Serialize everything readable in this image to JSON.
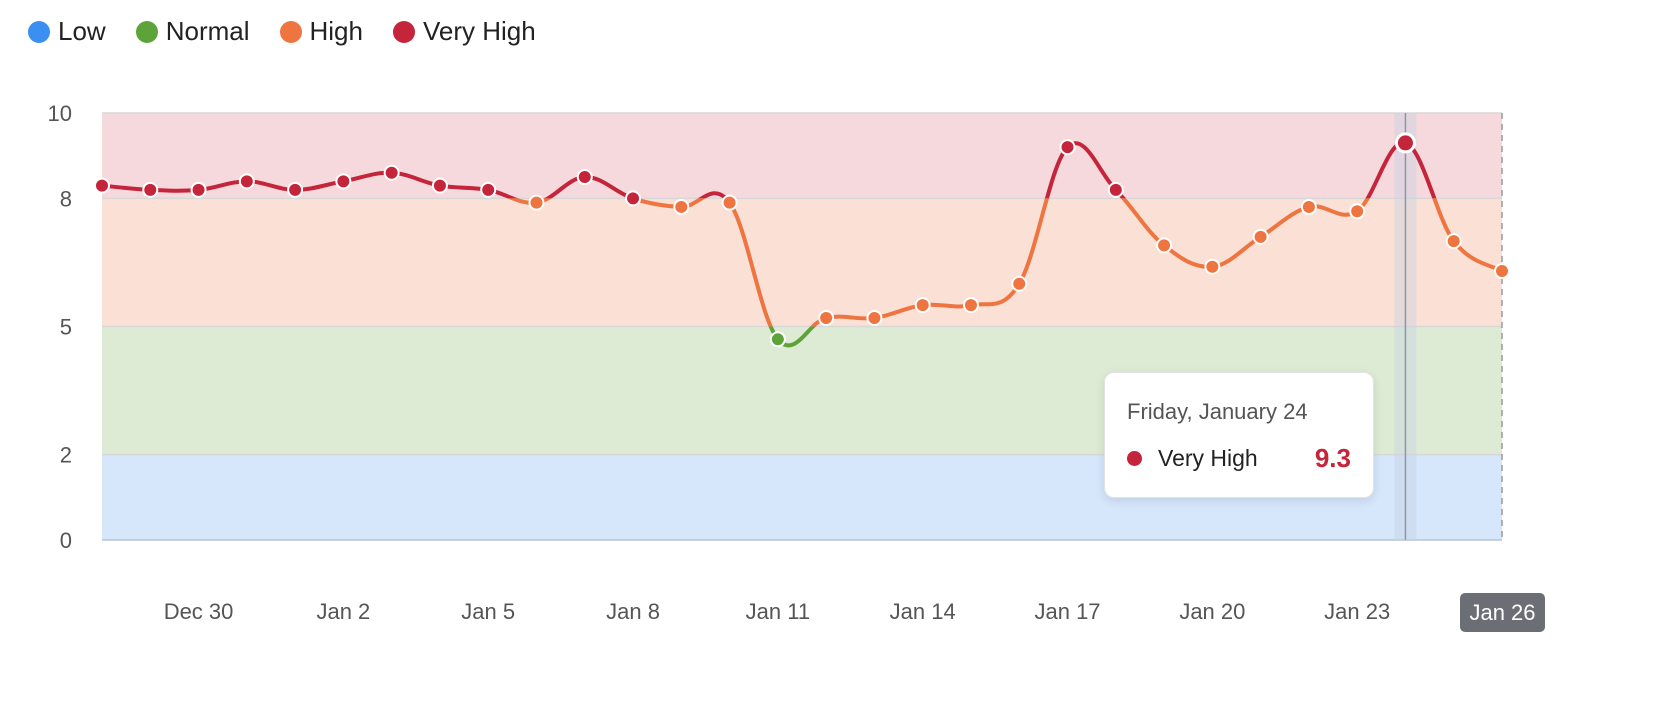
{
  "legend": [
    {
      "label": "Low",
      "color": "#3b8ff0"
    },
    {
      "label": "Normal",
      "color": "#5ea33a"
    },
    {
      "label": "High",
      "color": "#ee7440"
    },
    {
      "label": "Very High",
      "color": "#c4253a"
    }
  ],
  "tooltip": {
    "date": "Friday, January 24",
    "series": "Very High",
    "value": "9.3"
  },
  "x_badge": "Jan 26",
  "chart_data": {
    "type": "line",
    "x_start": "Dec 28",
    "x": [
      "Dec 28",
      "Dec 29",
      "Dec 30",
      "Dec 31",
      "Jan 1",
      "Jan 2",
      "Jan 3",
      "Jan 4",
      "Jan 5",
      "Jan 6",
      "Jan 7",
      "Jan 8",
      "Jan 9",
      "Jan 10",
      "Jan 11",
      "Jan 12",
      "Jan 13",
      "Jan 14",
      "Jan 15",
      "Jan 16",
      "Jan 17",
      "Jan 18",
      "Jan 19",
      "Jan 20",
      "Jan 21",
      "Jan 22",
      "Jan 23",
      "Jan 24",
      "Jan 25",
      "Jan 26"
    ],
    "values": [
      8.3,
      8.2,
      8.2,
      8.4,
      8.2,
      8.4,
      8.6,
      8.3,
      8.2,
      7.9,
      8.5,
      8.0,
      7.8,
      7.9,
      4.7,
      5.2,
      5.2,
      5.5,
      5.5,
      6.0,
      9.2,
      8.2,
      6.9,
      6.4,
      7.1,
      7.8,
      7.7,
      9.3,
      7.0,
      6.3
    ],
    "x_tick_labels": [
      "Dec 30",
      "Jan 2",
      "Jan 5",
      "Jan 8",
      "Jan 11",
      "Jan 14",
      "Jan 17",
      "Jan 20",
      "Jan 23"
    ],
    "y_ticks": [
      0,
      2,
      5,
      8,
      10
    ],
    "ylim": [
      0,
      10
    ],
    "bands": [
      {
        "name": "Low",
        "from": 0,
        "to": 2,
        "color": "#d6e6fb"
      },
      {
        "name": "Normal",
        "from": 2,
        "to": 5,
        "color": "#ddebd5"
      },
      {
        "name": "High",
        "from": 5,
        "to": 8,
        "color": "#fbe0d5"
      },
      {
        "name": "Very High",
        "from": 8,
        "to": 10,
        "color": "#f6d9dc"
      }
    ],
    "line_colors": {
      "High": "#ee7440",
      "Normal": "#5ea33a",
      "Very High": "#c4253a"
    },
    "highlighted": "Jan 24",
    "grid": true,
    "legend_position": "top-left"
  }
}
